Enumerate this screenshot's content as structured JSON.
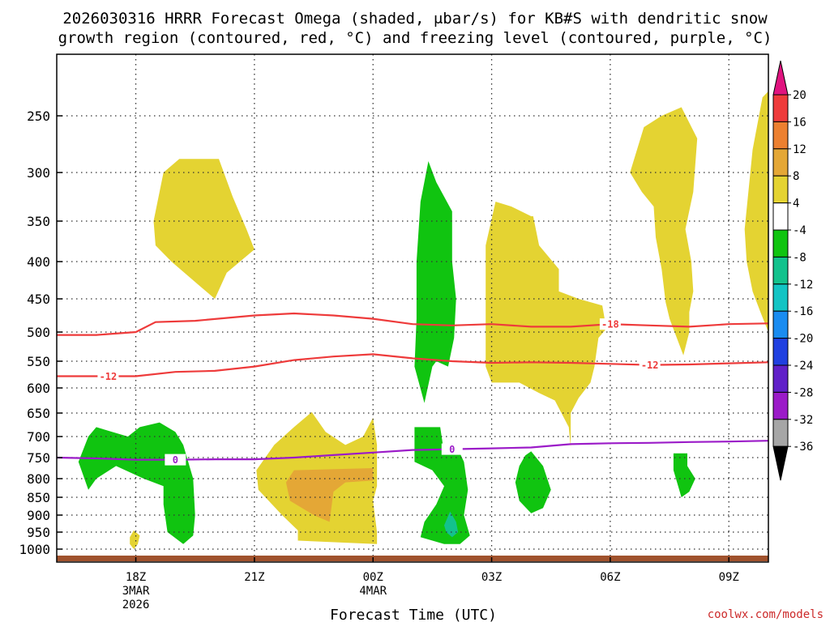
{
  "title": {
    "line1": "2026030316 HRRR Forecast Omega (shaded, μbar/s) for KB#S with dendritic snow",
    "line2": "growth region (contoured, red, °C) and freezing level (contoured, purple, °C)"
  },
  "watermark": "coolwx.com/models",
  "chart_data": {
    "type": "time-height cross-section",
    "xlabel": "Forecast Time (UTC)",
    "ylabel": "",
    "x_ticks": [
      {
        "label": "18Z",
        "sub": [
          "3MAR",
          "2026"
        ],
        "hour": 18
      },
      {
        "label": "21Z",
        "sub": [],
        "hour": 21
      },
      {
        "label": "00Z",
        "sub": [
          "4MAR"
        ],
        "hour": 24
      },
      {
        "label": "03Z",
        "sub": [],
        "hour": 27
      },
      {
        "label": "06Z",
        "sub": [],
        "hour": 30
      },
      {
        "label": "09Z",
        "sub": [],
        "hour": 33
      }
    ],
    "x_range_hours": [
      16,
      34
    ],
    "y_axis": "pressure (hPa), inverted",
    "y_ticks": [
      250,
      300,
      350,
      400,
      450,
      500,
      550,
      600,
      650,
      700,
      750,
      800,
      850,
      900,
      950,
      1000
    ],
    "colorbar": {
      "labels": [
        "20",
        "16",
        "12",
        "8",
        "4",
        "-4",
        "-8",
        "-12",
        "-16",
        "-20",
        "-24",
        "-28",
        "-32",
        "-36"
      ],
      "bins": [
        {
          "range": ">20",
          "color": "#e0137f"
        },
        {
          "range": "16-20",
          "color": "#ee3b3b"
        },
        {
          "range": "12-16",
          "color": "#ec8030"
        },
        {
          "range": "8-12",
          "color": "#e4a736"
        },
        {
          "range": "4-8",
          "color": "#e4d332"
        },
        {
          "range": "-4-4",
          "color": "#ffffff"
        },
        {
          "range": "-8--4",
          "color": "#10c410"
        },
        {
          "range": "-12--8",
          "color": "#13c28d"
        },
        {
          "range": "-16--12",
          "color": "#13c4c4"
        },
        {
          "range": "-20--16",
          "color": "#1a8cf0"
        },
        {
          "range": "-24--20",
          "color": "#2040e0"
        },
        {
          "range": "-28--24",
          "color": "#6020c8"
        },
        {
          "range": "-32--28",
          "color": "#9b1bc8"
        },
        {
          "range": "-36--32",
          "color": "#a6a6a6"
        },
        {
          "range": "<-36",
          "color": "#000000"
        }
      ]
    },
    "contours": [
      {
        "label": "-18",
        "color": "#ee3b3b",
        "points": [
          [
            16,
            505
          ],
          [
            17,
            505
          ],
          [
            18,
            500
          ],
          [
            18.5,
            485
          ],
          [
            19.5,
            483
          ],
          [
            21,
            475
          ],
          [
            22,
            472
          ],
          [
            23,
            475
          ],
          [
            24,
            480
          ],
          [
            25,
            488
          ],
          [
            26,
            490
          ],
          [
            27,
            488
          ],
          [
            28,
            492
          ],
          [
            29,
            492
          ],
          [
            30,
            488
          ],
          [
            31,
            490
          ],
          [
            32,
            492
          ],
          [
            33,
            488
          ],
          [
            34,
            487
          ]
        ]
      },
      {
        "label": "-12",
        "color": "#ee3b3b",
        "points": [
          [
            16,
            578
          ],
          [
            18,
            578
          ],
          [
            19,
            570
          ],
          [
            20,
            568
          ],
          [
            21,
            560
          ],
          [
            22,
            548
          ],
          [
            23,
            542
          ],
          [
            24,
            538
          ],
          [
            25,
            545
          ],
          [
            26,
            550
          ],
          [
            27,
            553
          ],
          [
            28,
            552
          ],
          [
            29,
            553
          ],
          [
            30,
            555
          ],
          [
            31,
            557
          ],
          [
            32,
            556
          ],
          [
            33,
            554
          ],
          [
            34,
            552
          ]
        ]
      },
      {
        "label": "0",
        "color": "#9b1bc8",
        "points": [
          [
            16,
            750
          ],
          [
            17,
            752
          ],
          [
            18,
            755
          ],
          [
            19,
            755
          ],
          [
            20,
            754
          ],
          [
            21,
            754
          ],
          [
            22,
            750
          ],
          [
            23,
            744
          ],
          [
            24,
            738
          ],
          [
            25,
            732
          ],
          [
            26,
            730
          ],
          [
            27,
            728
          ],
          [
            28,
            726
          ],
          [
            29,
            718
          ],
          [
            30,
            716
          ],
          [
            31,
            715
          ],
          [
            32,
            713
          ],
          [
            33,
            712
          ],
          [
            34,
            710
          ]
        ]
      }
    ],
    "shaded_regions": [
      {
        "value_bin": "4-8",
        "approx_hours": [
          18.4,
          20.9
        ],
        "approx_pressure": [
          288,
          455
        ]
      },
      {
        "value_bin": "4-8",
        "approx_hours": [
          17.8,
          18.1
        ],
        "approx_pressure": [
          945,
          1000
        ]
      },
      {
        "value_bin": "4-8",
        "approx_hours": [
          21,
          24.1
        ],
        "approx_pressure": [
          670,
          985
        ]
      },
      {
        "value_bin": "8-12",
        "approx_hours": [
          21.8,
          24
        ],
        "approx_pressure": [
          780,
          920
        ]
      },
      {
        "value_bin": "4-8",
        "approx_hours": [
          26.8,
          30.2
        ],
        "approx_pressure": [
          330,
          720
        ]
      },
      {
        "value_bin": "4-8",
        "approx_hours": [
          30.5,
          32.2
        ],
        "approx_pressure": [
          245,
          540
        ]
      },
      {
        "value_bin": "4-8",
        "approx_hours": [
          33.4,
          34
        ],
        "approx_pressure": [
          230,
          495
        ]
      },
      {
        "value_bin": "-8--4",
        "approx_hours": [
          16.5,
          19.5
        ],
        "approx_pressure": [
          660,
          980
        ]
      },
      {
        "value_bin": "-8--4",
        "approx_hours": [
          25.1,
          26.1
        ],
        "approx_pressure": [
          288,
          625
        ]
      },
      {
        "value_bin": "-8--4",
        "approx_hours": [
          25,
          26.4
        ],
        "approx_pressure": [
          680,
          985
        ]
      },
      {
        "value_bin": "-12--8",
        "approx_hours": [
          25.8,
          26.2
        ],
        "approx_pressure": [
          890,
          960
        ]
      },
      {
        "value_bin": "-8--4",
        "approx_hours": [
          27.6,
          28.5
        ],
        "approx_pressure": [
          735,
          900
        ]
      },
      {
        "value_bin": "-8--4",
        "approx_hours": [
          31.6,
          32.1
        ],
        "approx_pressure": [
          730,
          840
        ]
      }
    ],
    "ground_color": "#a0522d"
  }
}
